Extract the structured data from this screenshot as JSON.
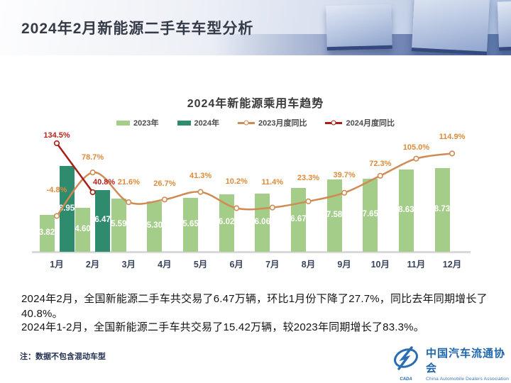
{
  "header": {
    "title": "2024年2月新能源二手车车型分析"
  },
  "chart_data": {
    "type": "bar",
    "title": "2024年新能源乘用车趋势",
    "xlabel": "",
    "ylabel": "",
    "grid": false,
    "legend_position": "top",
    "categories": [
      "1月",
      "2月",
      "3月",
      "4月",
      "5月",
      "6月",
      "7月",
      "8月",
      "9月",
      "10月",
      "11月",
      "12月"
    ],
    "series": [
      {
        "name": "2023年",
        "type": "bar",
        "color": "#a3cd89",
        "values": [
          3.82,
          4.6,
          5.59,
          5.3,
          5.65,
          6.02,
          6.06,
          6.67,
          7.58,
          7.65,
          8.63,
          8.73
        ]
      },
      {
        "name": "2024年",
        "type": "bar",
        "color": "#2f8b6e",
        "values": [
          8.95,
          6.47,
          null,
          null,
          null,
          null,
          null,
          null,
          null,
          null,
          null,
          null
        ]
      },
      {
        "name": "2023月度同比",
        "type": "line",
        "unit": "%",
        "color": "#d08b55",
        "label_color": "#dd8a38",
        "values": [
          -4.8,
          78.7,
          21.6,
          26.7,
          41.3,
          10.2,
          11.4,
          23.3,
          39.7,
          72.3,
          105.0,
          114.9
        ]
      },
      {
        "name": "2024月度同比",
        "type": "line",
        "unit": "%",
        "color": "#a61f17",
        "label_color": "#b3251c",
        "values": [
          134.5,
          40.8,
          null,
          null,
          null,
          null,
          null,
          null,
          null,
          null,
          null,
          null
        ]
      }
    ]
  },
  "summary": {
    "p1": "2024年2月，全国新能源二手车共交易了6.47万辆，环比1月份下降了27.7%，同比去年同期增长了40.8%。",
    "p2": "2024年1-2月，全国新能源二手车共交易了15.42万辆，较2023年同期增长了83.3%。"
  },
  "note": "注：数据不包含混动车型",
  "logo": {
    "abbr": "CADA",
    "name_cn": "中国汽车流通协会",
    "name_en": "China Automobile Dealers Association"
  }
}
